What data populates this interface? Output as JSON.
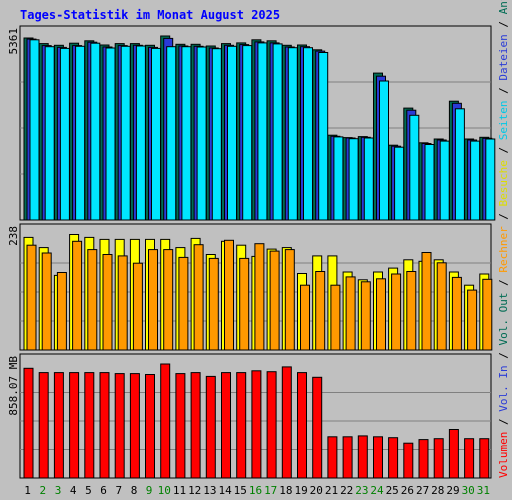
{
  "chart_data": {
    "type": "bar",
    "title": "Tages-Statistik im Monat August 2025",
    "categories": [
      "1",
      "2",
      "3",
      "4",
      "5",
      "6",
      "7",
      "8",
      "9",
      "10",
      "11",
      "12",
      "13",
      "14",
      "15",
      "16",
      "17",
      "18",
      "19",
      "20",
      "21",
      "22",
      "23",
      "24",
      "25",
      "26",
      "27",
      "28",
      "29",
      "30",
      "31"
    ],
    "weekend_days": [
      "2",
      "3",
      "9",
      "10",
      "16",
      "17",
      "23",
      "24",
      "30",
      "31"
    ],
    "panels": [
      {
        "name": "requests",
        "ymax_label": "5361",
        "ymax": 5361,
        "series": [
          {
            "name": "Anfragen",
            "color": "#006c54",
            "values": [
              5302,
              5140,
              5090,
              5150,
              5220,
              5100,
              5140,
              5140,
              5090,
              5361,
              5120,
              5120,
              5070,
              5140,
              5160,
              5250,
              5220,
              5090,
              5100,
              4960,
              2470,
              2400,
              2430,
              4280,
              2180,
              3260,
              2250,
              2360,
              3460,
              2360,
              2410
            ]
          },
          {
            "name": "Dateien",
            "color": "#2a3bd7",
            "values": [
              5270,
              5080,
              5030,
              5080,
              5180,
              5040,
              5080,
              5090,
              5030,
              5290,
              5070,
              5060,
              5010,
              5090,
              5110,
              5190,
              5160,
              5040,
              5050,
              4920,
              2440,
              2390,
              2410,
              4190,
              2150,
              3200,
              2230,
              2330,
              3400,
              2330,
              2380
            ]
          },
          {
            "name": "Seiten",
            "color": "#00e6ff",
            "values": [
              5250,
              5050,
              5000,
              5060,
              5150,
              5010,
              5060,
              5070,
              5000,
              5050,
              5050,
              5040,
              4990,
              5060,
              5080,
              5160,
              5130,
              5020,
              5020,
              4880,
              2420,
              2370,
              2390,
              4050,
              2120,
              3050,
              2200,
              2300,
              3240,
              2300,
              2360
            ]
          }
        ]
      },
      {
        "name": "visits",
        "ymax_label": "238",
        "ymax": 238,
        "series": [
          {
            "name": "Besuche",
            "color": "#ffff00",
            "values": [
              231,
              210,
              153,
              237,
              231,
              227,
              227,
              227,
              227,
              227,
              210,
              229,
              196,
              223,
              215,
              192,
              207,
              210,
              157,
              193,
              193,
              160,
              144,
              160,
              168,
              185,
              182,
              185,
              160,
              133,
              156
            ]
          },
          {
            "name": "Rechner",
            "color": "#ff9900",
            "values": [
              215,
              199,
              159,
              223,
              206,
              196,
              193,
              178,
              206,
              206,
              190,
              216,
              188,
              225,
              188,
              218,
              203,
              206,
              133,
              161,
              133,
              150,
              140,
              146,
              156,
              161,
              200,
              179,
              149,
              123,
              145
            ]
          }
        ]
      },
      {
        "name": "volume",
        "ymax_label": "858.07 MB",
        "ymax": 858.07,
        "series": [
          {
            "name": "Volumen",
            "color": "#ff0000",
            "values": [
              826,
              793,
              793,
              793,
              793,
              793,
              786,
              786,
              779,
              858,
              786,
              793,
              765,
              793,
              793,
              807,
              800,
              836,
              793,
              758,
              310,
              310,
              317,
              310,
              303,
              262,
              289,
              296,
              365,
              296,
              296
            ]
          }
        ]
      }
    ],
    "right_legend": [
      {
        "text": "Volumen",
        "color": "#ff0000"
      },
      {
        "text": " / ",
        "color": "#000000"
      },
      {
        "text": "Vol. In",
        "color": "#2a3bd7"
      },
      {
        "text": " / ",
        "color": "#000000"
      },
      {
        "text": "Vol. Out",
        "color": "#006c54"
      },
      {
        "text": " / ",
        "color": "#000000"
      },
      {
        "text": "Rechner",
        "color": "#ff9900"
      },
      {
        "text": " / ",
        "color": "#000000"
      },
      {
        "text": "Besuche",
        "color": "#dddd00"
      },
      {
        "text": " / ",
        "color": "#000000"
      },
      {
        "text": "Seiten",
        "color": "#00c8e6"
      },
      {
        "text": " / ",
        "color": "#000000"
      },
      {
        "text": "Dateien",
        "color": "#2a3bd7"
      },
      {
        "text": " / ",
        "color": "#000000"
      },
      {
        "text": "Anfragen",
        "color": "#006c54"
      }
    ],
    "grid": true,
    "colors": {
      "background": "#c0c0c0",
      "title": "#0000ff",
      "weekday_label": "#000000",
      "weekend_label": "#008000"
    }
  }
}
